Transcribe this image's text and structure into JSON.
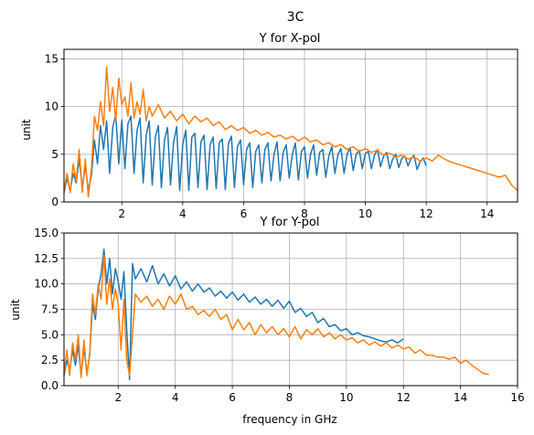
{
  "figure": {
    "suptitle": "3C"
  },
  "chart_data": [
    {
      "type": "line",
      "title": "Y for X-pol",
      "xlabel": "",
      "ylabel": "unit",
      "xlim": [
        0.1,
        15.0
      ],
      "ylim": [
        0,
        16
      ],
      "xticks": [
        2,
        4,
        6,
        8,
        10,
        12,
        14
      ],
      "yticks": [
        0,
        5,
        10,
        15
      ],
      "grid": true,
      "series": [
        {
          "color": "#1f77b4",
          "x": [
            0.1,
            0.2,
            0.3,
            0.4,
            0.5,
            0.6,
            0.7,
            0.8,
            0.9,
            1.0,
            1.1,
            1.2,
            1.3,
            1.4,
            1.5,
            1.6,
            1.7,
            1.8,
            1.9,
            2.0,
            2.1,
            2.2,
            2.3,
            2.4,
            2.5,
            2.6,
            2.7,
            2.8,
            2.9,
            3.0,
            3.1,
            3.2,
            3.3,
            3.4,
            3.5,
            3.6,
            3.7,
            3.8,
            3.9,
            4.0,
            4.1,
            4.2,
            4.3,
            4.4,
            4.5,
            4.6,
            4.7,
            4.8,
            4.9,
            5.0,
            5.1,
            5.2,
            5.3,
            5.4,
            5.5,
            5.6,
            5.7,
            5.8,
            5.9,
            6.0,
            6.1,
            6.2,
            6.3,
            6.4,
            6.5,
            6.6,
            6.7,
            6.8,
            6.9,
            7.0,
            7.1,
            7.2,
            7.3,
            7.4,
            7.5,
            7.6,
            7.7,
            7.8,
            7.9,
            8.0,
            8.1,
            8.2,
            8.3,
            8.4,
            8.5,
            8.6,
            8.7,
            8.8,
            8.9,
            9.0,
            9.1,
            9.2,
            9.3,
            9.4,
            9.5,
            9.6,
            9.7,
            9.8,
            9.9,
            10.0,
            10.1,
            10.2,
            10.3,
            10.4,
            10.5,
            10.6,
            10.7,
            10.8,
            10.9,
            11.0,
            11.1,
            11.2,
            11.3,
            11.4,
            11.5,
            11.6,
            11.7,
            11.8,
            11.9,
            12.0
          ],
          "y": [
            1.0,
            2.5,
            1.2,
            3.0,
            2.0,
            4.5,
            1.5,
            3.8,
            1.2,
            2.8,
            6.5,
            4.0,
            8.0,
            5.5,
            8.5,
            3.0,
            7.8,
            9.2,
            4.0,
            8.6,
            3.5,
            8.2,
            9.0,
            3.0,
            7.5,
            8.8,
            2.0,
            7.0,
            8.5,
            1.8,
            6.8,
            8.0,
            1.5,
            6.5,
            7.8,
            1.8,
            6.2,
            7.9,
            1.2,
            6.0,
            7.5,
            1.2,
            6.8,
            7.2,
            1.5,
            6.3,
            7.0,
            1.3,
            6.0,
            6.8,
            1.4,
            6.2,
            6.6,
            1.3,
            6.1,
            6.9,
            1.5,
            5.8,
            6.5,
            1.8,
            5.5,
            6.2,
            1.5,
            5.3,
            6.0,
            2.0,
            5.5,
            6.2,
            2.2,
            5.0,
            6.3,
            2.2,
            5.2,
            6.0,
            2.5,
            5.0,
            6.2,
            2.3,
            5.3,
            5.8,
            2.5,
            5.0,
            6.0,
            2.8,
            5.2,
            5.5,
            2.6,
            4.8,
            5.8,
            3.0,
            5.0,
            5.6,
            3.0,
            5.0,
            5.7,
            3.3,
            5.0,
            5.4,
            3.5,
            5.1,
            5.3,
            3.5,
            4.9,
            5.5,
            3.7,
            4.8,
            5.2,
            3.5,
            4.5,
            5.0,
            3.6,
            4.6,
            4.8,
            3.8,
            4.5,
            4.9,
            3.4,
            4.2,
            4.6,
            3.8
          ]
        },
        {
          "color": "#ff7f0e",
          "x": [
            0.1,
            0.2,
            0.3,
            0.4,
            0.5,
            0.6,
            0.7,
            0.8,
            0.9,
            1.0,
            1.1,
            1.2,
            1.3,
            1.4,
            1.5,
            1.6,
            1.7,
            1.8,
            1.9,
            2.0,
            2.1,
            2.2,
            2.3,
            2.4,
            2.5,
            2.6,
            2.7,
            2.8,
            2.9,
            3.0,
            3.2,
            3.4,
            3.6,
            3.8,
            4.0,
            4.2,
            4.4,
            4.6,
            4.8,
            5.0,
            5.2,
            5.4,
            5.6,
            5.8,
            6.0,
            6.2,
            6.4,
            6.6,
            6.8,
            7.0,
            7.2,
            7.4,
            7.6,
            7.8,
            8.0,
            8.2,
            8.4,
            8.6,
            8.8,
            9.0,
            9.2,
            9.4,
            9.6,
            9.8,
            10.0,
            10.2,
            10.4,
            10.6,
            10.8,
            11.0,
            11.2,
            11.4,
            11.6,
            11.8,
            12.0,
            12.2,
            12.4,
            12.6,
            12.8,
            13.0,
            13.2,
            13.4,
            13.6,
            13.8,
            14.0,
            14.2,
            14.4,
            14.6,
            14.8,
            15.0
          ],
          "y": [
            1.2,
            3.0,
            1.0,
            4.0,
            2.2,
            5.5,
            1.0,
            4.5,
            0.5,
            3.5,
            9.0,
            7.5,
            10.5,
            8.0,
            14.2,
            9.5,
            12.0,
            8.5,
            13.0,
            10.2,
            11.0,
            9.0,
            12.5,
            8.8,
            10.5,
            9.2,
            11.8,
            8.5,
            10.0,
            9.0,
            10.2,
            8.8,
            9.5,
            8.5,
            9.2,
            8.2,
            9.0,
            8.4,
            8.8,
            8.0,
            8.4,
            7.6,
            8.0,
            7.5,
            7.8,
            7.2,
            7.5,
            7.0,
            7.3,
            6.8,
            7.0,
            6.6,
            6.9,
            6.4,
            6.8,
            6.3,
            6.5,
            6.0,
            6.2,
            5.8,
            6.0,
            5.5,
            5.8,
            5.3,
            5.6,
            5.2,
            5.4,
            4.9,
            5.1,
            4.7,
            4.9,
            4.5,
            4.7,
            4.3,
            4.6,
            4.3,
            4.9,
            4.5,
            4.2,
            4.0,
            3.8,
            3.6,
            3.4,
            3.2,
            3.0,
            2.8,
            2.6,
            2.8,
            1.8,
            1.2
          ]
        }
      ]
    },
    {
      "type": "line",
      "title": "Y for Y-pol",
      "xlabel": "frequency in GHz",
      "ylabel": "unit",
      "xlim": [
        0.1,
        16.0
      ],
      "ylim": [
        0,
        15
      ],
      "xticks": [
        2,
        4,
        6,
        8,
        10,
        12,
        14,
        16
      ],
      "yticks": [
        0.0,
        2.5,
        5.0,
        7.5,
        10.0,
        12.5,
        15.0
      ],
      "grid": true,
      "series": [
        {
          "color": "#1f77b4",
          "x": [
            0.1,
            0.2,
            0.3,
            0.4,
            0.5,
            0.6,
            0.7,
            0.8,
            0.9,
            1.0,
            1.1,
            1.2,
            1.3,
            1.4,
            1.5,
            1.6,
            1.7,
            1.8,
            1.9,
            2.0,
            2.1,
            2.2,
            2.3,
            2.4,
            2.5,
            2.6,
            2.8,
            3.0,
            3.2,
            3.4,
            3.6,
            3.8,
            4.0,
            4.2,
            4.4,
            4.6,
            4.8,
            5.0,
            5.2,
            5.4,
            5.6,
            5.8,
            6.0,
            6.2,
            6.4,
            6.6,
            6.8,
            7.0,
            7.2,
            7.4,
            7.6,
            7.8,
            8.0,
            8.2,
            8.4,
            8.6,
            8.8,
            9.0,
            9.2,
            9.4,
            9.6,
            9.8,
            10.0,
            10.2,
            10.4,
            10.6,
            10.8,
            11.0,
            11.2,
            11.4,
            11.6,
            11.8,
            12.0
          ],
          "y": [
            1.0,
            2.5,
            1.5,
            3.5,
            2.0,
            4.0,
            1.0,
            3.8,
            1.2,
            3.0,
            8.0,
            6.5,
            9.5,
            11.0,
            13.4,
            10.0,
            12.5,
            9.0,
            11.5,
            10.2,
            8.5,
            11.2,
            5.5,
            0.6,
            12.0,
            10.5,
            11.5,
            10.2,
            11.8,
            10.0,
            11.0,
            9.8,
            10.8,
            9.5,
            10.2,
            9.3,
            10.0,
            9.2,
            9.6,
            8.8,
            9.3,
            8.6,
            9.2,
            8.4,
            9.0,
            8.2,
            8.7,
            8.0,
            8.5,
            7.8,
            8.4,
            7.6,
            8.3,
            7.2,
            7.6,
            6.8,
            7.2,
            6.2,
            6.6,
            5.8,
            6.0,
            5.4,
            5.6,
            5.0,
            5.2,
            4.9,
            4.8,
            4.6,
            4.4,
            4.3,
            4.5,
            4.2,
            4.6
          ]
        },
        {
          "color": "#ff7f0e",
          "x": [
            0.1,
            0.2,
            0.3,
            0.4,
            0.5,
            0.6,
            0.7,
            0.8,
            0.9,
            1.0,
            1.1,
            1.2,
            1.3,
            1.4,
            1.5,
            1.6,
            1.7,
            1.8,
            1.9,
            2.0,
            2.1,
            2.2,
            2.3,
            2.4,
            2.6,
            2.8,
            3.0,
            3.2,
            3.4,
            3.6,
            3.8,
            4.0,
            4.2,
            4.4,
            4.6,
            4.8,
            5.0,
            5.2,
            5.4,
            5.6,
            5.8,
            6.0,
            6.2,
            6.4,
            6.6,
            6.8,
            7.0,
            7.2,
            7.4,
            7.6,
            7.8,
            8.0,
            8.2,
            8.4,
            8.6,
            8.8,
            9.0,
            9.2,
            9.4,
            9.6,
            9.8,
            10.0,
            10.2,
            10.4,
            10.6,
            10.8,
            11.0,
            11.2,
            11.4,
            11.6,
            11.8,
            12.0,
            12.2,
            12.4,
            12.6,
            12.8,
            13.0,
            13.2,
            13.4,
            13.6,
            13.8,
            14.0,
            14.2,
            14.4,
            14.6,
            14.8,
            15.0
          ],
          "y": [
            1.2,
            3.5,
            1.0,
            4.2,
            2.5,
            5.0,
            0.8,
            4.5,
            1.0,
            3.2,
            9.0,
            7.0,
            10.0,
            8.5,
            12.8,
            8.0,
            10.5,
            7.5,
            9.5,
            8.0,
            3.5,
            8.5,
            2.5,
            1.0,
            9.0,
            8.2,
            8.8,
            7.8,
            8.5,
            7.5,
            8.8,
            8.0,
            9.0,
            7.5,
            7.8,
            7.0,
            7.4,
            6.8,
            7.5,
            6.5,
            7.0,
            5.5,
            6.5,
            5.5,
            6.2,
            5.0,
            6.0,
            5.2,
            5.8,
            5.0,
            5.6,
            4.8,
            5.8,
            4.6,
            5.5,
            5.0,
            5.6,
            4.8,
            5.2,
            4.6,
            5.0,
            4.5,
            4.7,
            4.2,
            4.5,
            4.0,
            4.3,
            3.9,
            4.2,
            3.7,
            4.0,
            3.6,
            3.8,
            3.2,
            3.5,
            3.0,
            3.0,
            2.8,
            2.8,
            2.6,
            2.8,
            2.2,
            2.5,
            2.0,
            1.6,
            1.2,
            1.1
          ]
        }
      ]
    }
  ]
}
